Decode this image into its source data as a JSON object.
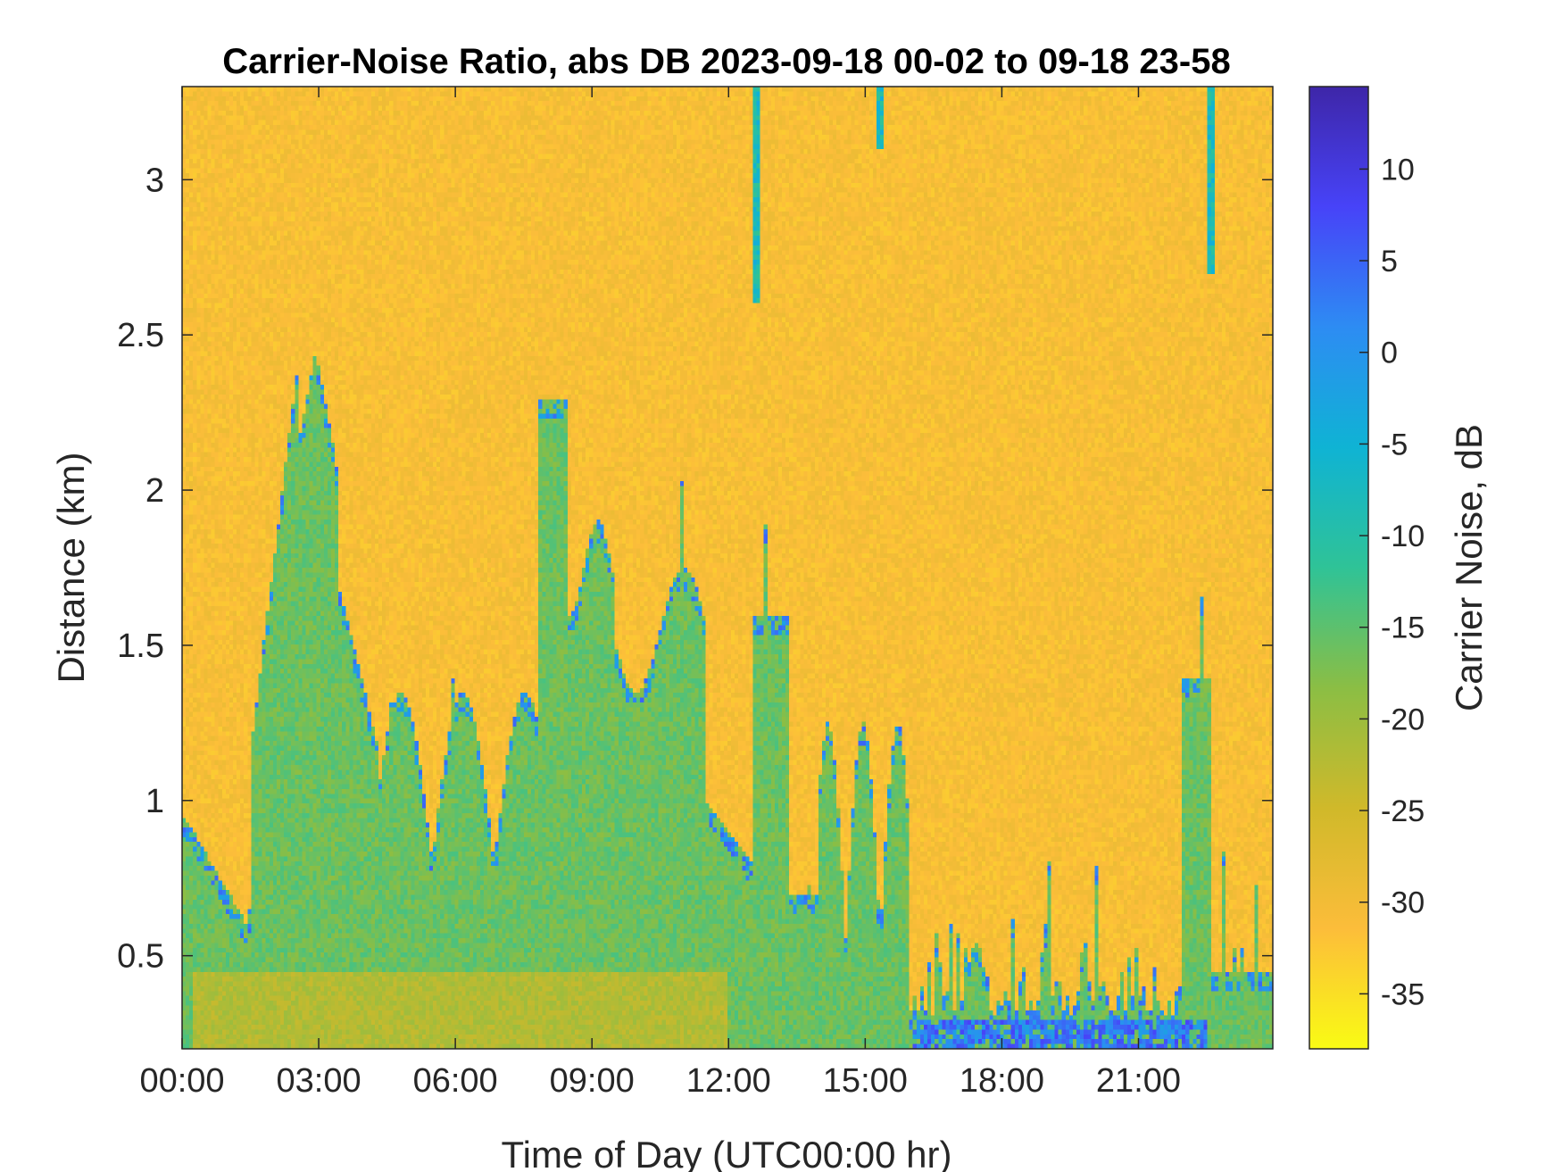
{
  "chart_data": {
    "type": "heatmap",
    "title": "Carrier-Noise Ratio, abs DB 2023-09-18 00-02 to 09-18 23-58",
    "xlabel": "Time of Day (UTC00:00 hr)",
    "ylabel": "Distance (km)",
    "x_ticks": [
      {
        "value": 0,
        "label": "00:00"
      },
      {
        "value": 3,
        "label": "03:00"
      },
      {
        "value": 6,
        "label": "06:00"
      },
      {
        "value": 9,
        "label": "09:00"
      },
      {
        "value": 12,
        "label": "12:00"
      },
      {
        "value": 15,
        "label": "15:00"
      },
      {
        "value": 18,
        "label": "18:00"
      },
      {
        "value": 21,
        "label": "21:00"
      }
    ],
    "xlim": [
      0,
      23.95
    ],
    "y_ticks": [
      {
        "value": 0.5,
        "label": "0.5"
      },
      {
        "value": 1,
        "label": "1"
      },
      {
        "value": 1.5,
        "label": "1.5"
      },
      {
        "value": 2,
        "label": "2"
      },
      {
        "value": 2.5,
        "label": "2.5"
      },
      {
        "value": 3,
        "label": "3"
      }
    ],
    "ylim": [
      0.2,
      3.3
    ],
    "colorbar": {
      "label": "Carrier Noise, dB",
      "clim": [
        -38,
        14.5
      ],
      "ticks": [
        {
          "value": 10,
          "label": "10"
        },
        {
          "value": 5,
          "label": "5"
        },
        {
          "value": 0,
          "label": "0"
        },
        {
          "value": -5,
          "label": "-5"
        },
        {
          "value": -10,
          "label": "-10"
        },
        {
          "value": -15,
          "label": "-15"
        },
        {
          "value": -20,
          "label": "-20"
        },
        {
          "value": -25,
          "label": "-25"
        },
        {
          "value": -30,
          "label": "-30"
        },
        {
          "value": -35,
          "label": "-35"
        }
      ],
      "colormap": "parula",
      "colors": [
        "#3e26a8",
        "#4743f8",
        "#2d8cf3",
        "#0fb3d4",
        "#2fc397",
        "#8bbe44",
        "#d0b92a",
        "#fcbd3a",
        "#f9fb14"
      ]
    },
    "background_value_db": -31,
    "features": [
      {
        "desc": "low-level aerosol/boundary layer",
        "t_range": [
          0,
          24
        ],
        "top_km": [
          0.35,
          1.0
        ],
        "value_db": -17
      },
      {
        "desc": "plume near 03:00",
        "t_center": 2.9,
        "top_km": 2.5,
        "value_db": -18
      },
      {
        "desc": "high columns 08:00-11:30",
        "t_range": [
          7.8,
          11.5
        ],
        "top_km": [
          1.5,
          2.4
        ],
        "value_db": -16
      },
      {
        "desc": "near-ground strong return 16:00-22:30",
        "t_range": [
          16.0,
          22.5
        ],
        "top_km": 0.35,
        "value_db": 2
      }
    ]
  }
}
